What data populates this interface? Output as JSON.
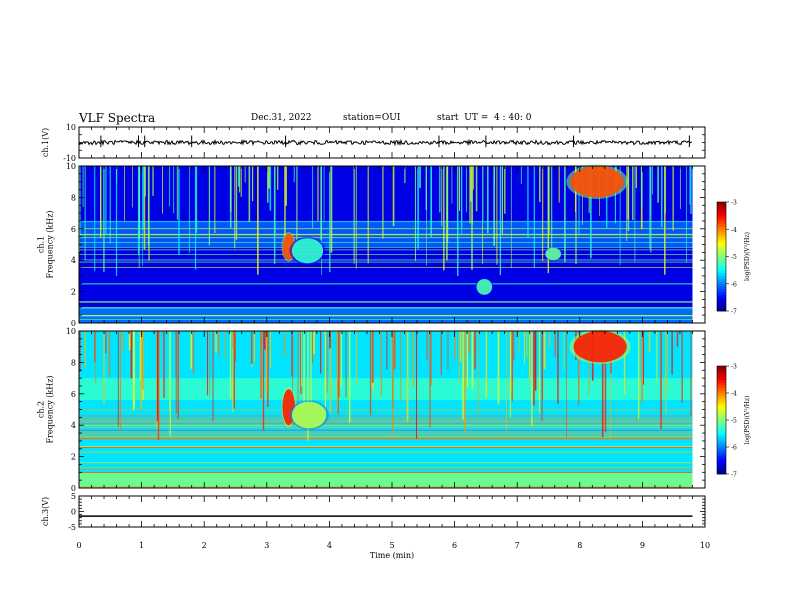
{
  "header": {
    "title": "VLF Spectra",
    "date": "Dec.31, 2022",
    "station": "station=OUI",
    "start": "start  UT =  4 : 40: 0"
  },
  "chart_data": [
    {
      "type": "line",
      "panel": "waveform-ch1",
      "ylabel": "ch.1(V)",
      "ylim": [
        -10,
        10
      ],
      "yticks": [
        "10",
        "-10"
      ],
      "x_range": [
        0,
        9.8
      ],
      "baseline": 0,
      "description_of_signal": "noisy",
      "spikes_min": [
        0.35,
        0.95,
        1.05,
        1.8,
        3.3,
        5.75,
        6.5,
        7.9,
        9.75
      ],
      "grid": false
    },
    {
      "type": "heatmap",
      "panel": "spectrogram-ch1",
      "ylabel": "ch.1\nFrequency (kHz)",
      "ylim": [
        0,
        10
      ],
      "yticks": [
        "0",
        "2",
        "4",
        "6",
        "8",
        "10"
      ],
      "x_range": [
        0,
        9.8
      ],
      "colorbar": {
        "label": "log(PSD)(V²/Hz)",
        "min": -7,
        "max": -3,
        "ticks": [
          "-3",
          "-4",
          "-5",
          "-6",
          "-7"
        ]
      },
      "background_log_psd": -6.6,
      "bands": [
        {
          "f_low_khz": 0,
          "f_high_khz": 1.0,
          "log_psd": -6.0
        },
        {
          "f_low_khz": 4.8,
          "f_high_khz": 6.5,
          "log_psd": -6.1
        }
      ],
      "events": [
        {
          "label": "emission",
          "t_min": 3.25,
          "t_max": 3.45,
          "f_low_khz": 4.0,
          "f_high_khz": 5.7,
          "log_psd": -3.8
        },
        {
          "label": "emission",
          "t_min": 3.4,
          "t_max": 3.9,
          "f_low_khz": 3.8,
          "f_high_khz": 5.4,
          "log_psd": -5.3
        },
        {
          "label": "emission",
          "t_min": 6.35,
          "t_max": 6.6,
          "f_low_khz": 1.8,
          "f_high_khz": 2.8,
          "log_psd": -5.2
        },
        {
          "label": "emission",
          "t_min": 7.45,
          "t_max": 7.7,
          "f_low_khz": 4.0,
          "f_high_khz": 4.8,
          "log_psd": -5.1
        },
        {
          "label": "emission",
          "t_min": 7.85,
          "t_max": 8.7,
          "f_low_khz": 8.0,
          "f_high_khz": 10.0,
          "log_psd": -3.8
        }
      ]
    },
    {
      "type": "heatmap",
      "panel": "spectrogram-ch2",
      "ylabel": "ch.2\nFrequency (kHz)",
      "ylim": [
        0,
        10
      ],
      "yticks": [
        "0",
        "2",
        "4",
        "6",
        "8",
        "10"
      ],
      "x_range": [
        0,
        9.8
      ],
      "colorbar": {
        "label": "log(PSD)(V²/Hz)",
        "min": -7,
        "max": -3,
        "ticks": [
          "-3",
          "-4",
          "-5",
          "-6",
          "-7"
        ]
      },
      "background_log_psd": -5.6,
      "bands": [
        {
          "f_low_khz": 0,
          "f_high_khz": 1.0,
          "log_psd": -5.0
        },
        {
          "f_low_khz": 5.6,
          "f_high_khz": 7.0,
          "log_psd": -5.3
        }
      ],
      "events": [
        {
          "label": "emission",
          "t_min": 3.25,
          "t_max": 3.45,
          "f_low_khz": 4.0,
          "f_high_khz": 6.3,
          "log_psd": -3.6
        },
        {
          "label": "emission",
          "t_min": 3.4,
          "t_max": 3.95,
          "f_low_khz": 3.8,
          "f_high_khz": 5.5,
          "log_psd": -4.8
        },
        {
          "label": "emission",
          "t_min": 7.9,
          "t_max": 8.75,
          "f_low_khz": 8.0,
          "f_high_khz": 10.0,
          "log_psd": -3.6
        }
      ]
    },
    {
      "type": "line",
      "panel": "waveform-ch3",
      "ylabel": "ch.3(V)",
      "ylim": [
        -5,
        5
      ],
      "yticks": [
        "5",
        "0",
        "-5"
      ],
      "x_range": [
        0,
        9.8
      ],
      "baseline": -1.5,
      "grid": false
    }
  ],
  "x_axis": {
    "label": "Time  (min)",
    "min": 0,
    "max": 10,
    "ticks": [
      "0",
      "1",
      "2",
      "3",
      "4",
      "5",
      "6",
      "7",
      "8",
      "9",
      "10"
    ]
  },
  "colors": {
    "colormap": [
      "#00007f",
      "#0000ff",
      "#007fff",
      "#00ffff",
      "#7fff7f",
      "#ffff00",
      "#ff7f00",
      "#ff0000",
      "#7f0000"
    ]
  }
}
